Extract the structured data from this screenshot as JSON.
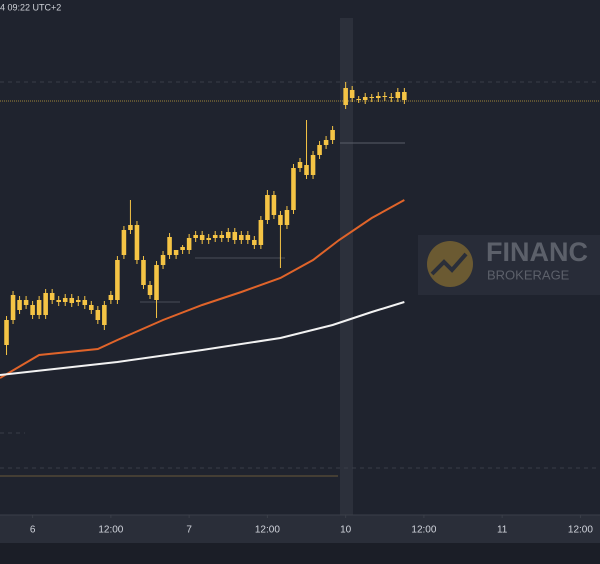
{
  "chart_data": {
    "type": "candlestick",
    "header": "4 09:22 UTC+2",
    "watermark_title": "FINANC",
    "watermark_subtitle": "BROKERAGE",
    "color": "#f5c445",
    "x": [
      -4,
      -3,
      -2,
      -1,
      0,
      1,
      2,
      3,
      4,
      5,
      6,
      7,
      8,
      9,
      10,
      11,
      12,
      13,
      14,
      15,
      16,
      17,
      18,
      19,
      20,
      21,
      22,
      23,
      24,
      25,
      26,
      27,
      28,
      29,
      30,
      31,
      32,
      33,
      34,
      35,
      36,
      37,
      38,
      39,
      40,
      41,
      42,
      43,
      44,
      45,
      46,
      48,
      49,
      50,
      51,
      52,
      53,
      54,
      55,
      56,
      57
    ],
    "open": [
      170,
      195,
      215,
      210,
      210,
      215,
      200,
      222,
      215,
      213,
      217,
      213,
      215,
      210,
      205,
      190,
      215,
      215,
      260,
      290,
      290,
      255,
      230,
      215,
      250,
      260,
      260,
      265,
      265,
      277,
      280,
      275,
      277,
      280,
      277,
      283,
      275,
      280,
      275,
      270,
      295,
      320,
      300,
      290,
      305,
      347,
      350,
      340,
      360,
      370,
      375,
      410,
      425,
      415,
      415,
      418,
      417,
      419,
      418,
      417,
      423
    ],
    "high": [
      199,
      224,
      219,
      219,
      214,
      219,
      226,
      226,
      219,
      221,
      221,
      219,
      219,
      214,
      209,
      214,
      224,
      259,
      289,
      315,
      294,
      259,
      234,
      254,
      264,
      282,
      264,
      270,
      281,
      284,
      284,
      281,
      284,
      284,
      287,
      287,
      284,
      284,
      279,
      299,
      325,
      324,
      304,
      309,
      351,
      357,
      395,
      364,
      374,
      379,
      389,
      433,
      429,
      419,
      422,
      421,
      423,
      423,
      422,
      427,
      427
    ],
    "low": [
      160,
      191,
      201,
      206,
      196,
      196,
      196,
      211,
      209,
      209,
      208,
      209,
      206,
      201,
      191,
      185,
      211,
      211,
      256,
      281,
      251,
      226,
      216,
      197,
      246,
      256,
      256,
      261,
      261,
      273,
      271,
      271,
      273,
      273,
      273,
      271,
      271,
      271,
      266,
      266,
      291,
      296,
      247,
      286,
      301,
      343,
      336,
      336,
      356,
      366,
      371,
      406,
      413,
      412,
      411,
      413,
      413,
      414,
      413,
      413,
      411
    ],
    "close": [
      195,
      220,
      205,
      215,
      200,
      200,
      222,
      215,
      213,
      217,
      212,
      215,
      210,
      205,
      195,
      210,
      220,
      255,
      285,
      285,
      255,
      230,
      220,
      250,
      260,
      278,
      265,
      268,
      277,
      280,
      275,
      277,
      280,
      277,
      283,
      275,
      280,
      275,
      270,
      295,
      320,
      300,
      290,
      305,
      347,
      353,
      340,
      360,
      370,
      375,
      385,
      427,
      417,
      416,
      418,
      417,
      419,
      418,
      417,
      423,
      415
    ],
    "lines": [
      {
        "color": "#e0642a",
        "x": [
          -5,
          1,
          10,
          13,
          20,
          26,
          32,
          38,
          43,
          47,
          52,
          57
        ],
        "values": [
          137,
          160,
          166,
          175,
          195,
          210,
          223,
          237,
          255,
          275,
          297,
          315
        ]
      },
      {
        "color": "#f2f2f2",
        "x": [
          -5,
          13,
          26,
          38,
          46,
          52,
          57
        ],
        "values": [
          140,
          153,
          165,
          177,
          190,
          203,
          213
        ]
      }
    ],
    "price_line": 414,
    "xlim": [
      -5,
      87
    ],
    "ylim": [
      0,
      515
    ],
    "xticks": [
      {
        "value": 0,
        "label": "6"
      },
      {
        "value": 12,
        "label": "12:00"
      },
      {
        "value": 24,
        "label": "7"
      },
      {
        "value": 36,
        "label": "12:00"
      },
      {
        "value": 48,
        "label": "10"
      },
      {
        "value": 60,
        "label": "12:00"
      },
      {
        "value": 72,
        "label": "11"
      },
      {
        "value": 84,
        "label": "12:00"
      }
    ]
  }
}
